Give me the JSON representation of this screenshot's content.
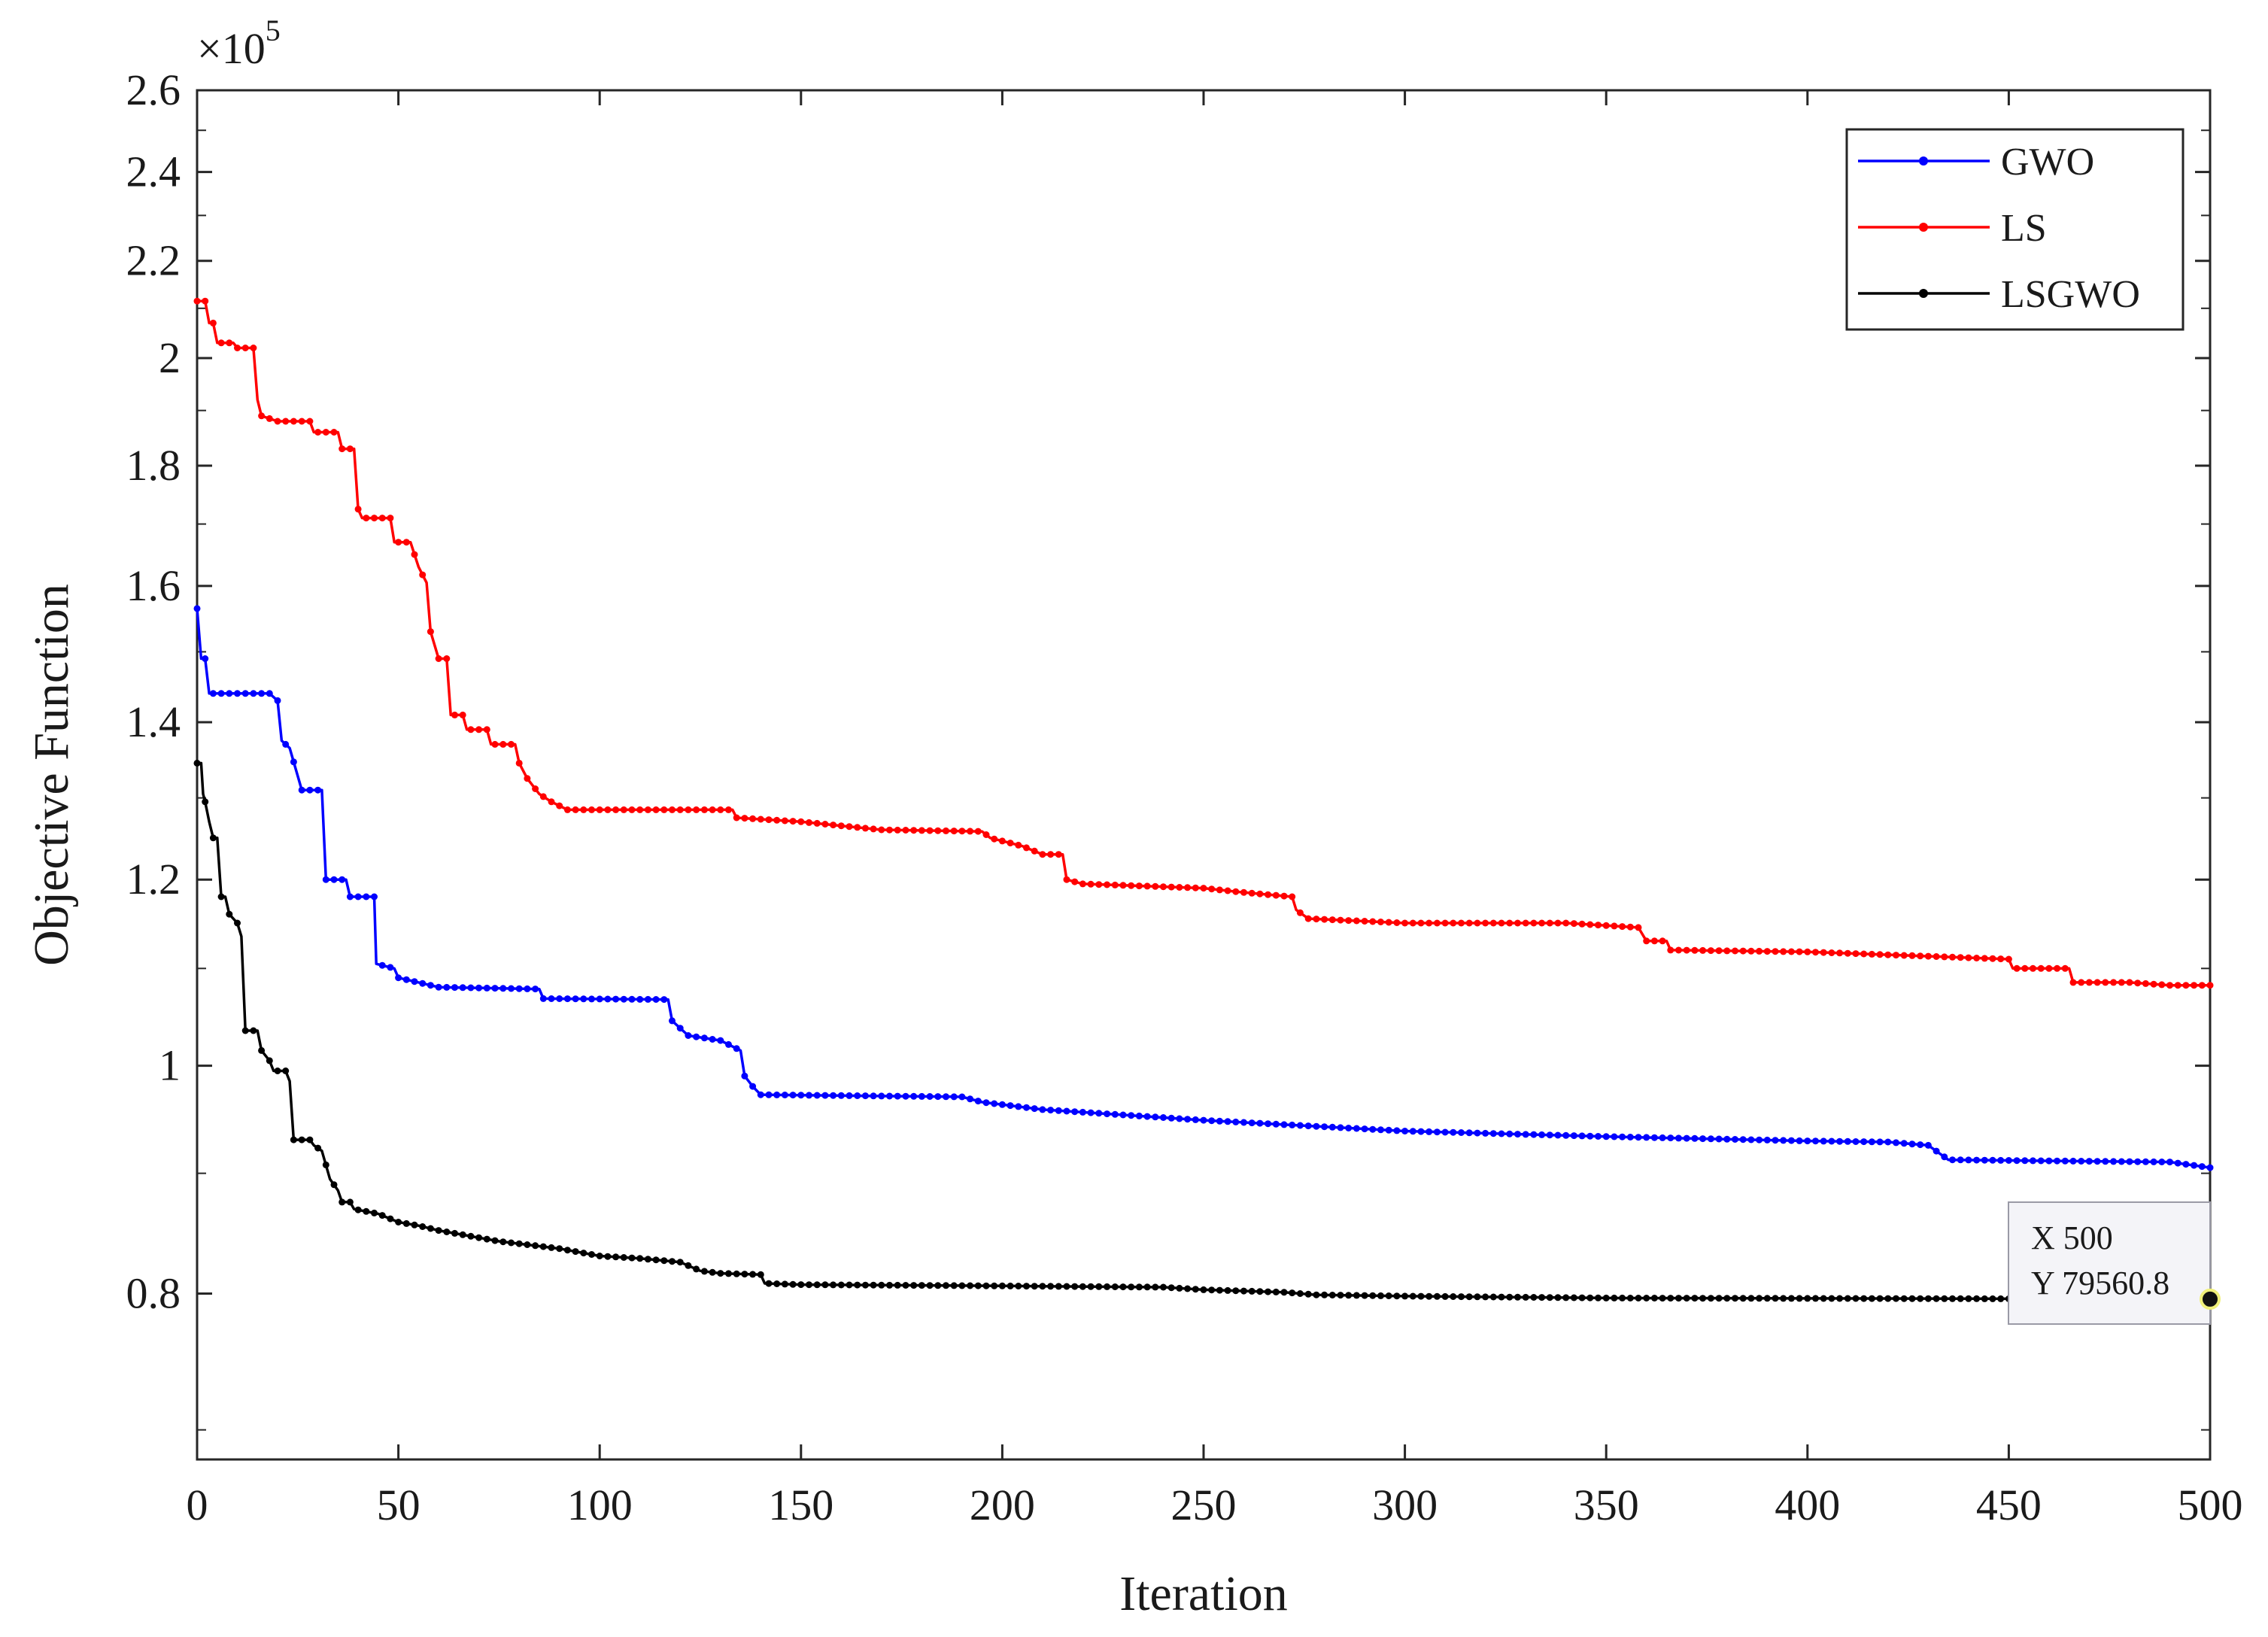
{
  "chart_data": {
    "type": "line",
    "xlabel": "Iteration",
    "ylabel": "Objective Function",
    "y_exponent_label": "×10",
    "y_exponent_power": "5",
    "xlim": [
      0,
      500
    ],
    "ylim": [
      68000,
      260000
    ],
    "y_scale": "log",
    "grid": false,
    "legend_position": "top-right",
    "x_ticks": [
      0,
      50,
      100,
      150,
      200,
      250,
      300,
      350,
      400,
      450,
      500
    ],
    "x_tick_labels": [
      "0",
      "50",
      "100",
      "150",
      "200",
      "250",
      "300",
      "350",
      "400",
      "450",
      "500"
    ],
    "y_ticks": [
      80000,
      100000,
      120000,
      140000,
      160000,
      180000,
      200000,
      220000,
      240000,
      260000
    ],
    "y_tick_labels": [
      "0.8",
      "1",
      "1.2",
      "1.4",
      "1.6",
      "1.8",
      "2",
      "2.2",
      "2.4",
      "2.6"
    ],
    "series": [
      {
        "name": "GWO",
        "color": "#0000ff",
        "points": [
          [
            0,
            156500
          ],
          [
            1,
            149000
          ],
          [
            2,
            149000
          ],
          [
            3,
            144000
          ],
          [
            18,
            144000
          ],
          [
            20,
            143000
          ],
          [
            21,
            137500
          ],
          [
            23,
            136500
          ],
          [
            26,
            131000
          ],
          [
            31,
            131000
          ],
          [
            32,
            120000
          ],
          [
            37,
            120000
          ],
          [
            38,
            118000
          ],
          [
            44,
            118000
          ],
          [
            44.5,
            110500
          ],
          [
            49,
            110000
          ],
          [
            50,
            109000
          ],
          [
            55,
            108500
          ],
          [
            60,
            108000
          ],
          [
            85,
            107800
          ],
          [
            86,
            106800
          ],
          [
            117,
            106700
          ],
          [
            118,
            104500
          ],
          [
            122,
            103000
          ],
          [
            130,
            102500
          ],
          [
            135,
            101500
          ],
          [
            136,
            99000
          ],
          [
            138,
            98000
          ],
          [
            140,
            97200
          ],
          [
            190,
            97000
          ],
          [
            195,
            96500
          ],
          [
            210,
            95800
          ],
          [
            250,
            94800
          ],
          [
            280,
            94200
          ],
          [
            300,
            93800
          ],
          [
            350,
            93300
          ],
          [
            400,
            92900
          ],
          [
            420,
            92800
          ],
          [
            430,
            92500
          ],
          [
            435,
            91200
          ],
          [
            460,
            91100
          ],
          [
            490,
            91000
          ],
          [
            500,
            90500
          ]
        ]
      },
      {
        "name": "LS",
        "color": "#ff0000",
        "points": [
          [
            0,
            211500
          ],
          [
            2,
            211500
          ],
          [
            3,
            207000
          ],
          [
            4,
            207000
          ],
          [
            5,
            203000
          ],
          [
            9,
            203000
          ],
          [
            10,
            202000
          ],
          [
            14,
            202000
          ],
          [
            15,
            192000
          ],
          [
            16,
            189000
          ],
          [
            20,
            188000
          ],
          [
            28,
            188000
          ],
          [
            29,
            186000
          ],
          [
            35,
            186000
          ],
          [
            36,
            183000
          ],
          [
            39,
            183000
          ],
          [
            40,
            172500
          ],
          [
            41,
            171000
          ],
          [
            48,
            171000
          ],
          [
            49,
            167000
          ],
          [
            53,
            167000
          ],
          [
            55,
            163000
          ],
          [
            57,
            160500
          ],
          [
            58,
            153000
          ],
          [
            60,
            149000
          ],
          [
            62,
            149000
          ],
          [
            63,
            141000
          ],
          [
            66,
            141000
          ],
          [
            67,
            139000
          ],
          [
            72,
            139000
          ],
          [
            73,
            137000
          ],
          [
            79,
            137000
          ],
          [
            80,
            134500
          ],
          [
            82,
            132500
          ],
          [
            85,
            130500
          ],
          [
            88,
            129500
          ],
          [
            90,
            129000
          ],
          [
            92,
            128500
          ],
          [
            133,
            128500
          ],
          [
            134,
            127500
          ],
          [
            150,
            127000
          ],
          [
            160,
            126500
          ],
          [
            170,
            126000
          ],
          [
            195,
            125800
          ],
          [
            197,
            125000
          ],
          [
            205,
            124000
          ],
          [
            210,
            123000
          ],
          [
            215,
            123000
          ],
          [
            216,
            120000
          ],
          [
            220,
            119500
          ],
          [
            250,
            119000
          ],
          [
            260,
            118500
          ],
          [
            272,
            118000
          ],
          [
            273,
            116500
          ],
          [
            276,
            115500
          ],
          [
            300,
            115000
          ],
          [
            340,
            115000
          ],
          [
            358,
            114500
          ],
          [
            360,
            113000
          ],
          [
            365,
            113000
          ],
          [
            366,
            112000
          ],
          [
            400,
            111800
          ],
          [
            450,
            111000
          ],
          [
            451,
            110000
          ],
          [
            465,
            110000
          ],
          [
            466,
            108500
          ],
          [
            480,
            108500
          ],
          [
            490,
            108200
          ],
          [
            500,
            108200
          ]
        ]
      },
      {
        "name": "LSGWO",
        "color": "#000000",
        "points": [
          [
            0,
            134500
          ],
          [
            1,
            134500
          ],
          [
            1.5,
            130500
          ],
          [
            2,
            129500
          ],
          [
            3,
            127000
          ],
          [
            4,
            125000
          ],
          [
            5,
            125000
          ],
          [
            6,
            118000
          ],
          [
            7,
            118000
          ],
          [
            8,
            116000
          ],
          [
            10,
            115000
          ],
          [
            11,
            113500
          ],
          [
            12,
            103500
          ],
          [
            13,
            103500
          ],
          [
            15,
            103500
          ],
          [
            16,
            101500
          ],
          [
            18,
            100500
          ],
          [
            19,
            99500
          ],
          [
            22,
            99500
          ],
          [
            23,
            98500
          ],
          [
            24,
            93000
          ],
          [
            28,
            93000
          ],
          [
            29,
            92500
          ],
          [
            31,
            92000
          ],
          [
            33,
            89500
          ],
          [
            35,
            88500
          ],
          [
            36,
            87500
          ],
          [
            38,
            87500
          ],
          [
            39,
            86900
          ],
          [
            45,
            86500
          ],
          [
            50,
            85800
          ],
          [
            55,
            85500
          ],
          [
            60,
            85100
          ],
          [
            65,
            84800
          ],
          [
            70,
            84500
          ],
          [
            75,
            84200
          ],
          [
            80,
            84000
          ],
          [
            85,
            83800
          ],
          [
            90,
            83600
          ],
          [
            95,
            83300
          ],
          [
            100,
            83000
          ],
          [
            110,
            82800
          ],
          [
            120,
            82500
          ],
          [
            125,
            81800
          ],
          [
            130,
            81600
          ],
          [
            140,
            81500
          ],
          [
            141,
            80800
          ],
          [
            150,
            80700
          ],
          [
            200,
            80600
          ],
          [
            240,
            80500
          ],
          [
            250,
            80300
          ],
          [
            270,
            80100
          ],
          [
            278,
            79900
          ],
          [
            300,
            79800
          ],
          [
            350,
            79650
          ],
          [
            400,
            79620
          ],
          [
            450,
            79590
          ],
          [
            500,
            79560.8
          ]
        ]
      }
    ],
    "datatip": {
      "x_label": "X 500",
      "y_label": "Y 79560.8",
      "x": 500,
      "y": 79560.8
    }
  }
}
